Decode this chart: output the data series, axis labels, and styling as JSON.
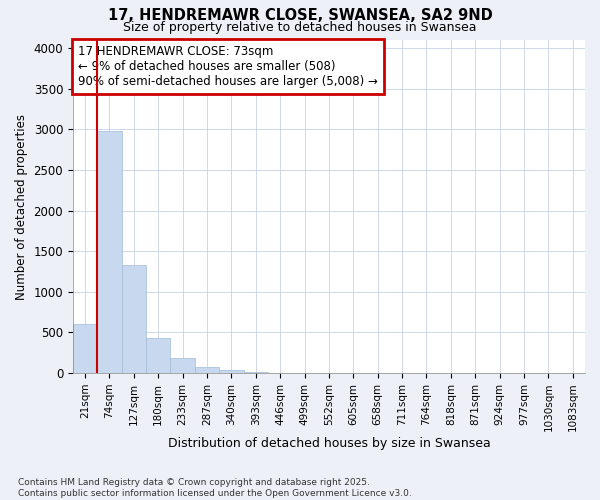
{
  "title": "17, HENDREMAWR CLOSE, SWANSEA, SA2 9ND",
  "subtitle": "Size of property relative to detached houses in Swansea",
  "xlabel": "Distribution of detached houses by size in Swansea",
  "ylabel": "Number of detached properties",
  "bar_color": "#c8d9ef",
  "bar_edge_color": "#a0bcd8",
  "vline_color": "#cc0000",
  "annotation_text": "17 HENDREMAWR CLOSE: 73sqm\n← 9% of detached houses are smaller (508)\n90% of semi-detached houses are larger (5,008) →",
  "annotation_box_color": "#cc0000",
  "categories": [
    "21sqm",
    "74sqm",
    "127sqm",
    "180sqm",
    "233sqm",
    "287sqm",
    "340sqm",
    "393sqm",
    "446sqm",
    "499sqm",
    "552sqm",
    "605sqm",
    "658sqm",
    "711sqm",
    "764sqm",
    "818sqm",
    "871sqm",
    "924sqm",
    "977sqm",
    "1030sqm",
    "1083sqm"
  ],
  "values": [
    600,
    2980,
    1330,
    430,
    185,
    75,
    35,
    10,
    5,
    0,
    0,
    0,
    0,
    0,
    0,
    0,
    0,
    0,
    0,
    0,
    0
  ],
  "ylim": [
    0,
    4100
  ],
  "yticks": [
    0,
    500,
    1000,
    1500,
    2000,
    2500,
    3000,
    3500,
    4000
  ],
  "footer": "Contains HM Land Registry data © Crown copyright and database right 2025.\nContains public sector information licensed under the Open Government Licence v3.0.",
  "background_color": "#edf1f7",
  "plot_bg_color": "#ffffff",
  "grid_color": "#d0d8e8"
}
